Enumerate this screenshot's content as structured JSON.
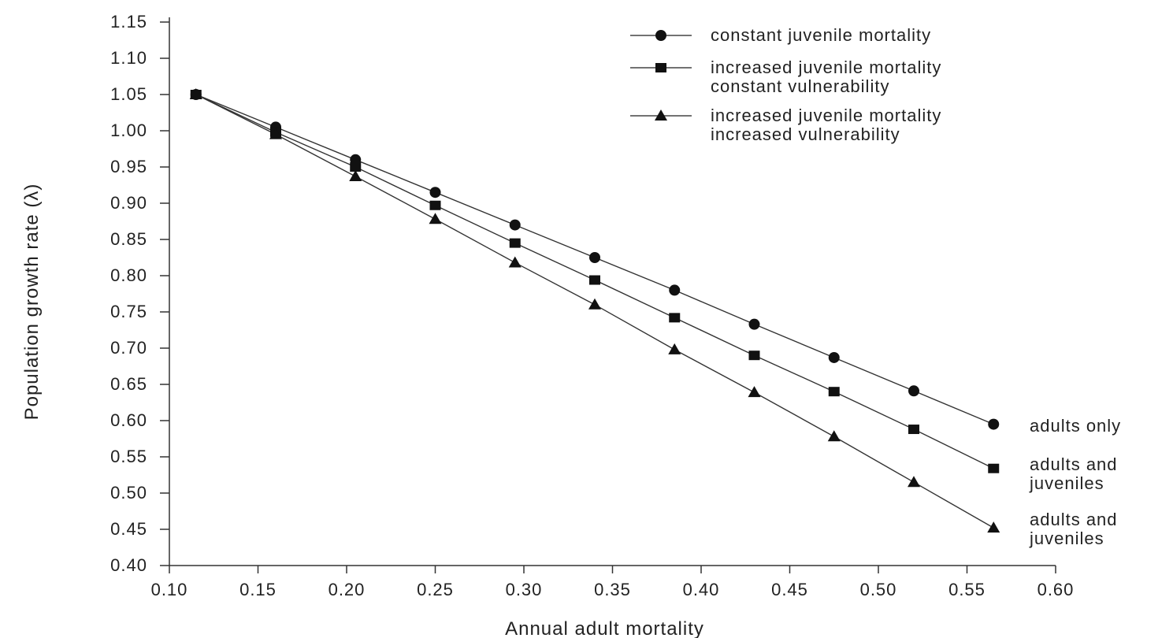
{
  "chart_data": {
    "type": "line",
    "xlabel": "Annual adult mortality",
    "ylabel": "Population growth rate (λ)",
    "xlim": [
      0.1,
      0.6
    ],
    "ylim": [
      0.4,
      1.15
    ],
    "xticks": [
      "0.10",
      "0.15",
      "0.20",
      "0.25",
      "0.30",
      "0.35",
      "0.40",
      "0.45",
      "0.50",
      "0.55",
      "0.60"
    ],
    "yticks": [
      "0.40",
      "0.45",
      "0.50",
      "0.55",
      "0.60",
      "0.65",
      "0.70",
      "0.75",
      "0.80",
      "0.85",
      "0.90",
      "0.95",
      "1.00",
      "1.05",
      "1.10",
      "1.15"
    ],
    "grid": false,
    "legend_position": "top-right",
    "x": [
      0.115,
      0.16,
      0.205,
      0.25,
      0.295,
      0.34,
      0.385,
      0.43,
      0.475,
      0.52,
      0.565
    ],
    "series": [
      {
        "name": "constant juvenile mortality",
        "marker": "circle",
        "end_label": [
          "adults only"
        ],
        "values": [
          1.05,
          1.005,
          0.96,
          0.915,
          0.87,
          0.825,
          0.78,
          0.733,
          0.687,
          0.641,
          0.595
        ]
      },
      {
        "name": "increased juvenile mortality\nconstant vulnerability",
        "marker": "square",
        "end_label": [
          "adults and",
          "juveniles"
        ],
        "values": [
          1.05,
          0.998,
          0.95,
          0.897,
          0.845,
          0.794,
          0.742,
          0.69,
          0.64,
          0.588,
          0.534
        ]
      },
      {
        "name": "increased juvenile mortality\nincreased vulnerability",
        "marker": "triangle",
        "end_label": [
          "adults and",
          "juveniles"
        ],
        "values": [
          1.05,
          0.995,
          0.937,
          0.878,
          0.818,
          0.76,
          0.698,
          0.639,
          0.578,
          0.515,
          0.452
        ]
      }
    ]
  }
}
